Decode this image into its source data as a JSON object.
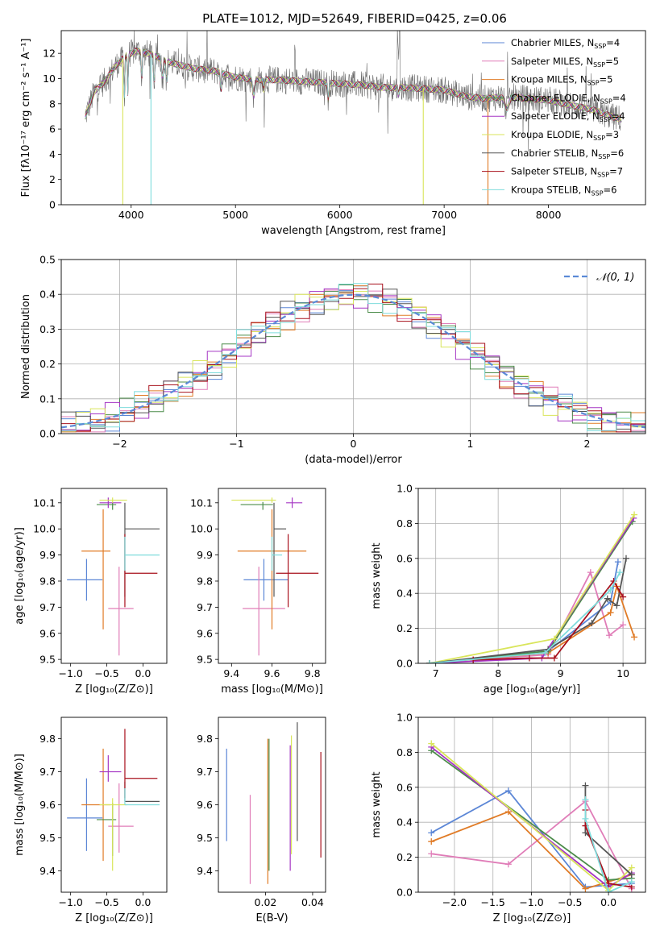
{
  "title": "PLATE=1012, MJD=52649, FIBERID=0425, z=0.06",
  "colors": [
    "#5b86d6",
    "#e07db8",
    "#e07b26",
    "#4c8c4a",
    "#a536c4",
    "#d9e55b",
    "#555555",
    "#a8101c",
    "#7fdcdc"
  ],
  "chart_data": [
    {
      "id": "spectrum",
      "type": "line",
      "xlabel": "wavelength [Angstrom, rest frame]",
      "ylabel": "Flux [fλ10⁻¹⁷ erg cm⁻² s⁻¹ A⁻¹]",
      "xlim": [
        3330,
        8930
      ],
      "ylim": [
        0,
        13.8
      ],
      "xticks": [
        "4000",
        "5000",
        "6000",
        "7000",
        "8000"
      ],
      "yticks": [
        "0",
        "2",
        "4",
        "6",
        "8",
        "10",
        "12"
      ],
      "grid": false,
      "legend_position": "top-right",
      "series": [
        {
          "name": "Chabrier MILES, N_SSP=4"
        },
        {
          "name": "Salpeter MILES, N_SSP=5"
        },
        {
          "name": "Kroupa MILES, N_SSP=5"
        },
        {
          "name": "Chabrier ELODIE, N_SSP=4"
        },
        {
          "name": "Salpeter ELODIE, N_SSP=4"
        },
        {
          "name": "Kroupa ELODIE, N_SSP=3"
        },
        {
          "name": "Chabrier STELIB, N_SSP=6"
        },
        {
          "name": "Salpeter STELIB, N_SSP=7"
        },
        {
          "name": "Kroupa STELIB, N_SSP=6"
        }
      ],
      "continuum": [
        [
          3560,
          7.0
        ],
        [
          3650,
          9.0
        ],
        [
          3750,
          9.8
        ],
        [
          3850,
          11.0
        ],
        [
          3950,
          11.8
        ],
        [
          4050,
          12.2
        ],
        [
          4200,
          11.9
        ],
        [
          4400,
          11.2
        ],
        [
          4600,
          10.8
        ],
        [
          4800,
          10.6
        ],
        [
          5000,
          10.1
        ],
        [
          5200,
          9.9
        ],
        [
          5400,
          9.9
        ],
        [
          5600,
          9.8
        ],
        [
          5800,
          9.7
        ],
        [
          6000,
          9.6
        ],
        [
          6200,
          9.5
        ],
        [
          6400,
          9.3
        ],
        [
          6600,
          9.3
        ],
        [
          6800,
          9.2
        ],
        [
          7000,
          9.1
        ],
        [
          7200,
          8.6
        ],
        [
          7400,
          8.4
        ],
        [
          7600,
          8.6
        ],
        [
          7800,
          8.4
        ],
        [
          8000,
          8.3
        ],
        [
          8200,
          7.9
        ],
        [
          8400,
          7.6
        ],
        [
          8600,
          7.0
        ],
        [
          8700,
          6.8
        ]
      ]
    },
    {
      "id": "residual-histogram",
      "type": "line",
      "xlabel": "(data-model)/error",
      "ylabel": "Normed distribution",
      "xlim": [
        -2.5,
        2.5
      ],
      "ylim": [
        0,
        0.5
      ],
      "xticks": [
        "−2",
        "−1",
        "0",
        "1",
        "2"
      ],
      "yticks": [
        "0.0",
        "0.1",
        "0.2",
        "0.3",
        "0.4",
        "0.5"
      ],
      "grid": true,
      "legend_position": "top-right",
      "reference_label": "𝒩(0, 1)"
    },
    {
      "id": "age-vs-Z",
      "type": "scatter",
      "xlabel": "Z [log₁₀(Z/Z⊙)]",
      "ylabel": "age  [log₁₀(age/yr)]",
      "xlim": [
        -1.13,
        0.33
      ],
      "ylim": [
        9.485,
        10.155
      ],
      "xticks": [
        "−1.0",
        "−0.5",
        "0.0"
      ],
      "yticks": [
        "9.5",
        "9.6",
        "9.7",
        "9.8",
        "9.9",
        "10.0",
        "10.1"
      ],
      "points": [
        {
          "x": -0.78,
          "xerr": [
            0.27,
            0.22
          ],
          "y": 9.805,
          "yerr": [
            0.08,
            0.08
          ]
        },
        {
          "x": -0.33,
          "xerr": [
            0.15,
            0.2
          ],
          "y": 9.695,
          "yerr": [
            0.18,
            0.16
          ]
        },
        {
          "x": -0.55,
          "xerr": [
            0.3,
            0.1
          ],
          "y": 9.915,
          "yerr": [
            0.3,
            0.16
          ]
        },
        {
          "x": -0.42,
          "xerr": [
            0.22,
            0.05
          ],
          "y": 10.093,
          "yerr": [
            0.02,
            0.01
          ]
        },
        {
          "x": -0.48,
          "xerr": [
            0.12,
            0.18
          ],
          "y": 10.1,
          "yerr": [
            0.02,
            0.02
          ]
        },
        {
          "x": -0.42,
          "xerr": [
            0.18,
            0.2
          ],
          "y": 10.11,
          "yerr": [
            0.01,
            0.01
          ]
        },
        {
          "x": -0.25,
          "xerr": [
            0.0,
            0.48
          ],
          "y": 10.0,
          "yerr": [
            0.26,
            0.1
          ]
        },
        {
          "x": -0.25,
          "xerr": [
            0.0,
            0.45
          ],
          "y": 9.83,
          "yerr": [
            0.13,
            0.15
          ]
        },
        {
          "x": -0.25,
          "xerr": [
            0.0,
            0.48
          ],
          "y": 9.9,
          "yerr": [
            0.06,
            0.07
          ]
        }
      ]
    },
    {
      "id": "age-vs-mass",
      "type": "scatter",
      "xlabel": "mass [log₁₀(M/M⊙)]",
      "ylabel": "",
      "xlim": [
        9.335,
        9.865
      ],
      "ylim": [
        9.485,
        10.155
      ],
      "xticks": [
        "9.4",
        "9.6",
        "9.8"
      ],
      "yticks": [
        "9.5",
        "9.6",
        "9.7",
        "9.8",
        "9.9",
        "10.0",
        "10.1"
      ],
      "points": [
        {
          "x": 9.56,
          "xerr": [
            0.1,
            0.12
          ],
          "y": 9.805,
          "yerr": [
            0.08,
            0.08
          ]
        },
        {
          "x": 9.535,
          "xerr": [
            0.08,
            0.13
          ],
          "y": 9.695,
          "yerr": [
            0.18,
            0.16
          ]
        },
        {
          "x": 9.6,
          "xerr": [
            0.17,
            0.17
          ],
          "y": 9.915,
          "yerr": [
            0.3,
            0.16
          ]
        },
        {
          "x": 9.555,
          "xerr": [
            0.11,
            0.05
          ],
          "y": 10.093,
          "yerr": [
            0.02,
            0.01
          ]
        },
        {
          "x": 9.7,
          "xerr": [
            0.03,
            0.05
          ],
          "y": 10.1,
          "yerr": [
            0.02,
            0.02
          ]
        },
        {
          "x": 9.6,
          "xerr": [
            0.2,
            0.02
          ],
          "y": 10.11,
          "yerr": [
            0.01,
            0.01
          ]
        },
        {
          "x": 9.61,
          "xerr": [
            0.0,
            0.06
          ],
          "y": 10.0,
          "yerr": [
            0.26,
            0.1
          ]
        },
        {
          "x": 9.68,
          "xerr": [
            0.06,
            0.15
          ],
          "y": 9.83,
          "yerr": [
            0.13,
            0.15
          ]
        },
        {
          "x": 9.6,
          "xerr": [
            0.0,
            0.05
          ],
          "y": 9.9,
          "yerr": [
            0.06,
            0.07
          ]
        }
      ]
    },
    {
      "id": "weight-vs-age",
      "type": "line",
      "xlabel": "age  [log₁₀(age/yr)]",
      "ylabel": "mass weight",
      "xlim": [
        6.72,
        10.36
      ],
      "ylim": [
        0,
        1
      ],
      "xticks": [
        "7",
        "8",
        "9",
        "10"
      ],
      "yticks": [
        "0.0",
        "0.2",
        "0.4",
        "0.6",
        "0.8",
        "1.0"
      ],
      "grid": true,
      "series": [
        {
          "values": [
            [
              6.9,
              0.0
            ],
            [
              8.8,
              0.07
            ],
            [
              9.8,
              0.35
            ],
            [
              9.92,
              0.58
            ]
          ]
        },
        {
          "values": [
            [
              7.6,
              0.02
            ],
            [
              8.8,
              0.05
            ],
            [
              9.48,
              0.52
            ],
            [
              9.78,
              0.16
            ],
            [
              10.0,
              0.22
            ]
          ]
        },
        {
          "values": [
            [
              6.9,
              0.0
            ],
            [
              8.8,
              0.06
            ],
            [
              9.8,
              0.29
            ],
            [
              9.9,
              0.44
            ],
            [
              10.18,
              0.15
            ]
          ]
        },
        {
          "values": [
            [
              6.9,
              0.0
            ],
            [
              8.8,
              0.07
            ],
            [
              10.15,
              0.81
            ]
          ]
        },
        {
          "values": [
            [
              6.9,
              0.0
            ],
            [
              8.7,
              0.03
            ],
            [
              10.17,
              0.83
            ]
          ]
        },
        {
          "values": [
            [
              6.9,
              0.0
            ],
            [
              8.9,
              0.14
            ],
            [
              10.18,
              0.85
            ]
          ]
        },
        {
          "values": [
            [
              6.9,
              0.0
            ],
            [
              8.8,
              0.08
            ],
            [
              9.5,
              0.23
            ],
            [
              9.75,
              0.37
            ],
            [
              9.9,
              0.33
            ],
            [
              10.05,
              0.6
            ]
          ]
        },
        {
          "values": [
            [
              7.6,
              0.02
            ],
            [
              8.5,
              0.03
            ],
            [
              8.9,
              0.03
            ],
            [
              9.85,
              0.47
            ],
            [
              10.0,
              0.38
            ]
          ]
        },
        {
          "values": [
            [
              6.9,
              0.0
            ],
            [
              8.75,
              0.06
            ],
            [
              9.8,
              0.42
            ],
            [
              9.95,
              0.52
            ]
          ]
        }
      ]
    },
    {
      "id": "mass-vs-Z",
      "type": "scatter",
      "xlabel": "Z [log₁₀(Z/Z⊙)]",
      "ylabel": "mass [log₁₀(M/M⊙)]",
      "xlim": [
        -1.13,
        0.33
      ],
      "ylim": [
        9.335,
        9.865
      ],
      "xticks": [
        "−1.0",
        "−0.5",
        "0.0"
      ],
      "yticks": [
        "9.4",
        "9.5",
        "9.6",
        "9.7",
        "9.8"
      ],
      "points": [
        {
          "x": -0.78,
          "xerr": [
            0.27,
            0.22
          ],
          "y": 9.56,
          "yerr": [
            0.1,
            0.12
          ]
        },
        {
          "x": -0.33,
          "xerr": [
            0.15,
            0.2
          ],
          "y": 9.535,
          "yerr": [
            0.08,
            0.13
          ]
        },
        {
          "x": -0.55,
          "xerr": [
            0.3,
            0.1
          ],
          "y": 9.6,
          "yerr": [
            0.17,
            0.17
          ]
        },
        {
          "x": -0.42,
          "xerr": [
            0.22,
            0.05
          ],
          "y": 9.555,
          "yerr": [
            0.11,
            0.05
          ]
        },
        {
          "x": -0.48,
          "xerr": [
            0.12,
            0.18
          ],
          "y": 9.7,
          "yerr": [
            0.03,
            0.05
          ]
        },
        {
          "x": -0.42,
          "xerr": [
            0.18,
            0.2
          ],
          "y": 9.6,
          "yerr": [
            0.2,
            0.02
          ]
        },
        {
          "x": -0.25,
          "xerr": [
            0.0,
            0.48
          ],
          "y": 9.61,
          "yerr": [
            0.0,
            0.06
          ]
        },
        {
          "x": -0.25,
          "xerr": [
            0.0,
            0.45
          ],
          "y": 9.68,
          "yerr": [
            0.06,
            0.15
          ]
        },
        {
          "x": -0.25,
          "xerr": [
            0.0,
            0.48
          ],
          "y": 9.6,
          "yerr": [
            0.0,
            0.05
          ]
        }
      ]
    },
    {
      "id": "mass-vs-ebv",
      "type": "scatter",
      "xlabel": "E(B-V)",
      "ylabel": "",
      "xlim": [
        0.0,
        0.0455
      ],
      "ylim": [
        9.335,
        9.865
      ],
      "xticks": [
        "0.02",
        "0.04"
      ],
      "yticks": [
        "9.4",
        "9.5",
        "9.6",
        "9.7",
        "9.8"
      ],
      "points": [
        {
          "x": 0.0035,
          "y": 9.63,
          "yerr": [
            0.14,
            0.14
          ]
        },
        {
          "x": 0.0135,
          "y": 9.49,
          "yerr": [
            0.13,
            0.14
          ]
        },
        {
          "x": 0.021,
          "y": 9.58,
          "yerr": [
            0.22,
            0.22
          ]
        },
        {
          "x": 0.0215,
          "y": 9.6,
          "yerr": [
            0.2,
            0.2
          ]
        },
        {
          "x": 0.0305,
          "y": 9.59,
          "yerr": [
            0.19,
            0.19
          ]
        },
        {
          "x": 0.031,
          "y": 9.63,
          "yerr": [
            0.18,
            0.18
          ]
        },
        {
          "x": 0.0335,
          "y": 9.67,
          "yerr": [
            0.18,
            0.18
          ]
        },
        {
          "x": 0.0435,
          "y": 9.6,
          "yerr": [
            0.16,
            0.16
          ]
        }
      ]
    },
    {
      "id": "weight-vs-Z",
      "type": "line",
      "xlabel": "Z [log₁₀(Z/Z⊙)]",
      "ylabel": "mass weight",
      "xlim": [
        -2.47,
        0.48
      ],
      "ylim": [
        0,
        1
      ],
      "xticks": [
        "−2.0",
        "−1.5",
        "−1.0",
        "−0.5",
        "0.0"
      ],
      "yticks": [
        "0.0",
        "0.2",
        "0.4",
        "0.6",
        "0.8",
        "1.0"
      ],
      "grid": true,
      "series": [
        {
          "values": [
            [
              -2.3,
              0.34
            ],
            [
              -1.3,
              0.58
            ],
            [
              -0.3,
              0.03
            ],
            [
              0.3,
              0.05
            ]
          ]
        },
        {
          "values": [
            [
              -2.3,
              0.22
            ],
            [
              -1.3,
              0.16
            ],
            [
              -0.3,
              0.52
            ],
            [
              0.3,
              0.02
            ]
          ]
        },
        {
          "values": [
            [
              -2.3,
              0.29
            ],
            [
              -1.3,
              0.46
            ],
            [
              -0.3,
              0.02
            ],
            [
              0.3,
              0.1
            ]
          ]
        },
        {
          "values": [
            [
              -2.3,
              0.81
            ],
            [
              0.0,
              0.07
            ],
            [
              0.3,
              0.08
            ]
          ]
        },
        {
          "values": [
            [
              -2.3,
              0.83
            ],
            [
              0.0,
              0.03
            ],
            [
              0.3,
              0.11
            ]
          ]
        },
        {
          "values": [
            [
              -2.3,
              0.85
            ],
            [
              0.0,
              0.01
            ],
            [
              0.3,
              0.14
            ]
          ]
        },
        {
          "values": [
            [
              -0.3,
              0.61
            ],
            [
              -0.3,
              0.34
            ],
            [
              0.3,
              0.1
            ]
          ]
        },
        {
          "values": [
            [
              -0.3,
              0.47
            ],
            [
              -0.3,
              0.38
            ],
            [
              0.0,
              0.05
            ],
            [
              0.3,
              0.03
            ]
          ]
        },
        {
          "values": [
            [
              -0.3,
              0.53
            ],
            [
              -0.3,
              0.42
            ],
            [
              0.0,
              0.0
            ],
            [
              0.3,
              0.06
            ]
          ]
        }
      ]
    }
  ]
}
